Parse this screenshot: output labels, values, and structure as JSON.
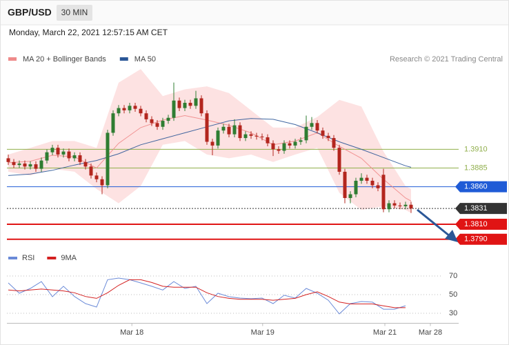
{
  "header": {
    "symbol": "GBP/USD",
    "timeframe": "30 MIN",
    "datetime": "Monday, March 22, 2021 12:57:15 AM CET"
  },
  "chart_data": [
    {
      "type": "candlestick",
      "source": "Research © 2021 Trading Central",
      "xlim": [
        -0.25,
        81.625
      ],
      "ylim": [
        1.3775,
        1.403
      ],
      "up_color": "#2f7d32",
      "down_color": "#b3261e",
      "open": [
        1.3898,
        1.3893,
        1.3889,
        1.3891,
        1.3887,
        1.389,
        1.3884,
        1.3895,
        1.3906,
        1.3912,
        1.3903,
        1.3907,
        1.3898,
        1.3902,
        1.3893,
        1.3887,
        1.3875,
        1.387,
        1.3862,
        1.3932,
        1.3958,
        1.3965,
        1.3962,
        1.3968,
        1.3964,
        1.3958,
        1.395,
        1.3945,
        1.394,
        1.3948,
        1.3952,
        1.3975,
        1.3965,
        1.3972,
        1.3968,
        1.3978,
        1.3958,
        1.392,
        1.3915,
        1.3935,
        1.394,
        1.393,
        1.3942,
        1.3925,
        1.393,
        1.3928,
        1.3927,
        1.3926,
        1.3918,
        1.391,
        1.3908,
        1.3918,
        1.3915,
        1.392,
        1.3922,
        1.394,
        1.3945,
        1.3935,
        1.3928,
        1.3925,
        1.3912,
        1.388,
        1.3845,
        1.385,
        1.3868,
        1.3872,
        1.3868,
        1.3862,
        1.3876,
        1.383,
        1.3838,
        1.3835,
        1.3834,
        1.3836
      ],
      "high": [
        1.3903,
        1.3897,
        1.3895,
        1.3895,
        1.3894,
        1.3894,
        1.3899,
        1.391,
        1.3916,
        1.3916,
        1.3911,
        1.3911,
        1.3906,
        1.3906,
        1.3897,
        1.3891,
        1.3879,
        1.3874,
        1.3936,
        1.3962,
        1.3969,
        1.3969,
        1.3972,
        1.3972,
        1.3968,
        1.3962,
        1.3954,
        1.3949,
        1.3952,
        1.3956,
        1.3999,
        1.3979,
        1.3976,
        1.3976,
        1.3988,
        1.3982,
        1.3962,
        1.3924,
        1.3939,
        1.3944,
        1.3944,
        1.395,
        1.3946,
        1.3934,
        1.3934,
        1.3932,
        1.3931,
        1.393,
        1.3922,
        1.3914,
        1.3922,
        1.3922,
        1.3924,
        1.3926,
        1.3955,
        1.3953,
        1.3949,
        1.3939,
        1.3932,
        1.3929,
        1.3916,
        1.3884,
        1.3854,
        1.3872,
        1.3878,
        1.3876,
        1.3872,
        1.3866,
        1.3884,
        1.3842,
        1.3842,
        1.3839,
        1.384,
        1.384
      ],
      "low": [
        1.3889,
        1.3885,
        1.3885,
        1.3883,
        1.3883,
        1.388,
        1.388,
        1.3891,
        1.3902,
        1.3899,
        1.3899,
        1.3894,
        1.3894,
        1.3889,
        1.3883,
        1.3871,
        1.3866,
        1.385,
        1.3858,
        1.3928,
        1.3954,
        1.3958,
        1.3958,
        1.396,
        1.3954,
        1.3946,
        1.3941,
        1.3936,
        1.3936,
        1.3944,
        1.3948,
        1.3961,
        1.3961,
        1.3964,
        1.3964,
        1.3954,
        1.3916,
        1.3902,
        1.3911,
        1.3931,
        1.3926,
        1.3926,
        1.3921,
        1.3921,
        1.3924,
        1.3923,
        1.3922,
        1.3914,
        1.3901,
        1.3904,
        1.3904,
        1.3911,
        1.3911,
        1.3916,
        1.3918,
        1.3936,
        1.3931,
        1.3924,
        1.3921,
        1.3908,
        1.3876,
        1.3838,
        1.3838,
        1.3846,
        1.3864,
        1.3864,
        1.3858,
        1.3854,
        1.3826,
        1.3826,
        1.3831,
        1.383,
        1.383,
        1.3825
      ],
      "close": [
        1.3893,
        1.3889,
        1.3891,
        1.3887,
        1.389,
        1.3884,
        1.3895,
        1.3906,
        1.3912,
        1.3903,
        1.3907,
        1.3898,
        1.3902,
        1.3893,
        1.3887,
        1.3875,
        1.387,
        1.3862,
        1.3932,
        1.3958,
        1.3965,
        1.3962,
        1.3968,
        1.3964,
        1.3958,
        1.395,
        1.3945,
        1.394,
        1.3948,
        1.3952,
        1.3975,
        1.3965,
        1.3972,
        1.3968,
        1.3978,
        1.3958,
        1.392,
        1.3915,
        1.3935,
        1.394,
        1.393,
        1.3942,
        1.3925,
        1.393,
        1.3928,
        1.3927,
        1.3926,
        1.3918,
        1.391,
        1.3908,
        1.3918,
        1.3915,
        1.392,
        1.3922,
        1.394,
        1.3945,
        1.3935,
        1.3928,
        1.3925,
        1.3912,
        1.388,
        1.3845,
        1.385,
        1.3868,
        1.3872,
        1.3868,
        1.3862,
        1.3858,
        1.383,
        1.3838,
        1.3835,
        1.3834,
        1.3836,
        1.3831
      ],
      "overlays": [
        {
          "name": "MA 20 + Bollinger Bands",
          "color": "#ef8a8a",
          "band_color": "#fde2e2",
          "x": [
            0,
            4,
            8,
            12,
            16,
            20,
            24,
            28,
            32,
            36,
            40,
            44,
            48,
            52,
            56,
            60,
            64,
            68,
            72,
            73
          ],
          "values": [
            1.3892,
            1.3894,
            1.3902,
            1.39,
            1.3885,
            1.3918,
            1.3939,
            1.3949,
            1.3955,
            1.3949,
            1.3942,
            1.3932,
            1.3916,
            1.3921,
            1.3932,
            1.3914,
            1.3898,
            1.387,
            1.3845,
            1.3841
          ],
          "upper": [
            1.3903,
            1.3912,
            1.3921,
            1.3921,
            1.3912,
            1.3999,
            1.4017,
            1.3981,
            1.399,
            1.3994,
            1.3985,
            1.3962,
            1.3939,
            1.3939,
            1.3953,
            1.3976,
            1.3967,
            1.3907,
            1.3861,
            1.3857
          ],
          "lower": [
            1.388,
            1.3875,
            1.3884,
            1.388,
            1.3857,
            1.3838,
            1.3861,
            1.3916,
            1.3921,
            1.3903,
            1.3898,
            1.3903,
            1.3893,
            1.3903,
            1.3912,
            1.3852,
            1.3829,
            1.3834,
            1.3829,
            1.3825
          ]
        },
        {
          "name": "MA 50",
          "color": "#2b5797",
          "x": [
            0,
            4,
            8,
            12,
            16,
            20,
            24,
            28,
            32,
            36,
            40,
            44,
            48,
            52,
            56,
            60,
            64,
            68,
            72,
            73
          ],
          "values": [
            1.3875,
            1.3877,
            1.3882,
            1.3889,
            1.3895,
            1.3904,
            1.3916,
            1.3924,
            1.3932,
            1.394,
            1.3948,
            1.3951,
            1.395,
            1.3943,
            1.3932,
            1.392,
            1.391,
            1.3899,
            1.3888,
            1.3886
          ]
        }
      ],
      "levels": [
        {
          "value": 1.391,
          "label": "1.3910",
          "color": "#8fae4a",
          "boxed": false,
          "dash": false,
          "width": 1
        },
        {
          "value": 1.3885,
          "label": "1.3885",
          "color": "#8fae4a",
          "boxed": false,
          "dash": false,
          "width": 1
        },
        {
          "value": 1.386,
          "label": "1.3860",
          "color": "#1f5bd6",
          "boxed": true,
          "dash": false,
          "width": 1
        },
        {
          "value": 1.3831,
          "label": "1.3831",
          "color": "#333333",
          "boxed": true,
          "dash": true,
          "width": 1
        },
        {
          "value": 1.381,
          "label": "1.3810",
          "color": "#e01414",
          "boxed": true,
          "dash": false,
          "width": 2
        },
        {
          "value": 1.379,
          "label": "1.3790",
          "color": "#e01414",
          "boxed": true,
          "dash": false,
          "width": 2
        }
      ]
    },
    {
      "type": "line",
      "xlim": [
        -0.25,
        81.625
      ],
      "ylim": [
        20,
        80
      ],
      "yticks": [
        70,
        50,
        30
      ],
      "xticks": [
        {
          "value": 22.4,
          "label": "Mar 18"
        },
        {
          "value": 46.1,
          "label": "Mar 19"
        },
        {
          "value": 68.25,
          "label": "Mar 21"
        },
        {
          "value": 76.5,
          "label": "Mar 28"
        }
      ],
      "series": [
        {
          "name": "RSI",
          "color": "#6a8ad8",
          "x": [
            0,
            2,
            4,
            6,
            8,
            10,
            12,
            14,
            16,
            18,
            20,
            22,
            24,
            26,
            28,
            30,
            32,
            34,
            36,
            38,
            40,
            42,
            44,
            46,
            48,
            50,
            52,
            54,
            56,
            58,
            60,
            62,
            64,
            66,
            68,
            70,
            72
          ],
          "values": [
            62.6,
            51.5,
            56.7,
            64,
            47.8,
            59,
            48,
            40.4,
            36.7,
            66,
            67.8,
            66,
            62.6,
            59,
            55,
            64,
            56.7,
            59,
            40.4,
            51.5,
            47.8,
            46.3,
            45.6,
            46.3,
            40.4,
            49.3,
            46.3,
            56.7,
            51.5,
            44,
            29.3,
            40.4,
            42.6,
            41.9,
            34.4,
            34.4,
            38.1
          ]
        },
        {
          "name": "9MA",
          "color": "#d42020",
          "x": [
            0,
            2,
            4,
            6,
            8,
            10,
            12,
            14,
            16,
            18,
            20,
            22,
            24,
            26,
            28,
            30,
            32,
            34,
            36,
            38,
            40,
            42,
            44,
            46,
            48,
            50,
            52,
            54,
            56,
            58,
            60,
            62,
            64,
            66,
            68,
            70,
            72
          ],
          "values": [
            55,
            54,
            55,
            56,
            55,
            54,
            52,
            48,
            46,
            52,
            60,
            66,
            66,
            63,
            59,
            58,
            58,
            58,
            52,
            48,
            46,
            45,
            45,
            45,
            44,
            45,
            46,
            50,
            53,
            48,
            42,
            40,
            40,
            40,
            38,
            36,
            36
          ]
        }
      ]
    }
  ]
}
